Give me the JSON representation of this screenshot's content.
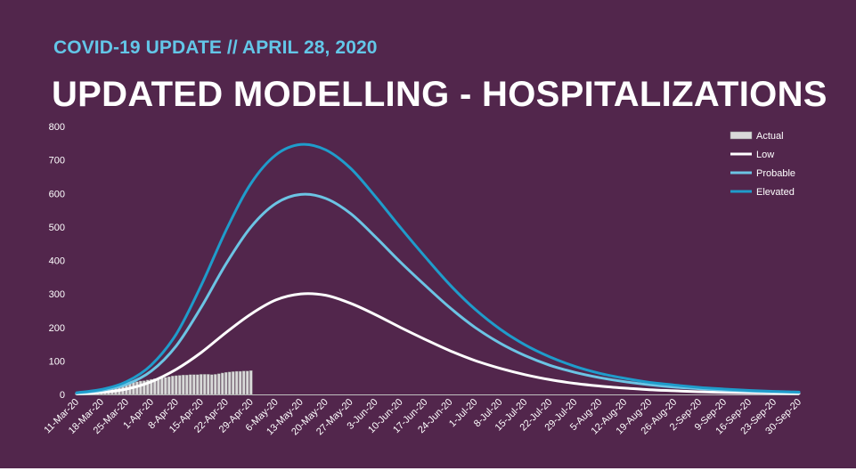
{
  "header": {
    "subtitle": "COVID-19 UPDATE // APRIL 28, 2020",
    "title": "UPDATED MODELLING - HOSPITALIZATIONS"
  },
  "colors": {
    "background": "#52264c",
    "subtitle": "#63c6e8",
    "actual": "#d9d9d9",
    "low": "#ffffff",
    "probable": "#6cc4e4",
    "elevated": "#1f9ccb"
  },
  "chart_data": {
    "type": "line",
    "title": "",
    "xlabel": "",
    "ylabel": "",
    "ylim": [
      0,
      800
    ],
    "yticks": [
      0,
      100,
      200,
      300,
      400,
      500,
      600,
      700,
      800
    ],
    "grid": false,
    "legend_position": "top-right",
    "x_tick_labels": [
      "11-Mar-20",
      "18-Mar-20",
      "25-Mar-20",
      "1-Apr-20",
      "8-Apr-20",
      "15-Apr-20",
      "22-Apr-20",
      "29-Apr-20",
      "6-May-20",
      "13-May-20",
      "20-May-20",
      "27-May-20",
      "3-Jun-20",
      "10-Jun-20",
      "17-Jun-20",
      "24-Jun-20",
      "1-Jul-20",
      "8-Jul-20",
      "15-Jul-20",
      "22-Jul-20",
      "29-Jul-20",
      "5-Aug-20",
      "12-Aug-20",
      "19-Aug-20",
      "26-Aug-20",
      "2-Sep-20",
      "9-Sep-20",
      "16-Sep-20",
      "23-Sep-20",
      "30-Sep-20"
    ],
    "legend": [
      "Actual",
      "Low",
      "Probable",
      "Elevated"
    ],
    "actual": {
      "name": "Actual",
      "start_date": "2020-03-11",
      "values": [
        1,
        2,
        3,
        4,
        6,
        8,
        10,
        13,
        16,
        18,
        20,
        22,
        24,
        27,
        30,
        33,
        36,
        38,
        40,
        41,
        43,
        45,
        47,
        49,
        50,
        51,
        53,
        55,
        56,
        57,
        58,
        58,
        59,
        59,
        59,
        60,
        60,
        60,
        59,
        60,
        62,
        64,
        66,
        67,
        68,
        69,
        69,
        70,
        70,
        71
      ]
    },
    "series": [
      {
        "name": "Low",
        "x": [
          "11-Mar-20",
          "18-Mar-20",
          "25-Mar-20",
          "1-Apr-20",
          "8-Apr-20",
          "15-Apr-20",
          "22-Apr-20",
          "29-Apr-20",
          "6-May-20",
          "13-May-20",
          "20-May-20",
          "27-May-20",
          "3-Jun-20",
          "10-Jun-20",
          "17-Jun-20",
          "24-Jun-20",
          "1-Jul-20",
          "8-Jul-20",
          "15-Jul-20",
          "22-Jul-20",
          "29-Jul-20",
          "5-Aug-20",
          "12-Aug-20",
          "19-Aug-20",
          "26-Aug-20",
          "2-Sep-20",
          "9-Sep-20",
          "16-Sep-20",
          "23-Sep-20",
          "30-Sep-20"
        ],
        "values": [
          2,
          6,
          16,
          38,
          75,
          125,
          185,
          240,
          282,
          300,
          296,
          272,
          238,
          200,
          164,
          130,
          101,
          78,
          59,
          44,
          33,
          25,
          19,
          14,
          11,
          8,
          6,
          5,
          4,
          3
        ]
      },
      {
        "name": "Probable",
        "x": [
          "11-Mar-20",
          "18-Mar-20",
          "25-Mar-20",
          "1-Apr-20",
          "8-Apr-20",
          "15-Apr-20",
          "22-Apr-20",
          "29-Apr-20",
          "6-May-20",
          "13-May-20",
          "20-May-20",
          "27-May-20",
          "3-Jun-20",
          "10-Jun-20",
          "17-Jun-20",
          "24-Jun-20",
          "1-Jul-20",
          "8-Jul-20",
          "15-Jul-20",
          "22-Jul-20",
          "29-Jul-20",
          "5-Aug-20",
          "12-Aug-20",
          "19-Aug-20",
          "26-Aug-20",
          "2-Sep-20",
          "9-Sep-20",
          "16-Sep-20",
          "23-Sep-20",
          "30-Sep-20"
        ],
        "values": [
          4,
          12,
          30,
          70,
          145,
          260,
          390,
          500,
          570,
          597,
          585,
          540,
          470,
          395,
          325,
          258,
          200,
          153,
          116,
          87,
          66,
          50,
          38,
          29,
          22,
          17,
          13,
          10,
          8,
          6
        ]
      },
      {
        "name": "Elevated",
        "x": [
          "11-Mar-20",
          "18-Mar-20",
          "25-Mar-20",
          "1-Apr-20",
          "8-Apr-20",
          "15-Apr-20",
          "22-Apr-20",
          "29-Apr-20",
          "6-May-20",
          "13-May-20",
          "20-May-20",
          "27-May-20",
          "3-Jun-20",
          "10-Jun-20",
          "17-Jun-20",
          "24-Jun-20",
          "1-Jul-20",
          "8-Jul-20",
          "15-Jul-20",
          "22-Jul-20",
          "29-Jul-20",
          "5-Aug-20",
          "12-Aug-20",
          "19-Aug-20",
          "26-Aug-20",
          "2-Sep-20",
          "9-Sep-20",
          "16-Sep-20",
          "23-Sep-20",
          "30-Sep-20"
        ],
        "values": [
          5,
          15,
          38,
          88,
          180,
          325,
          490,
          630,
          715,
          746,
          730,
          675,
          590,
          498,
          410,
          326,
          254,
          195,
          148,
          112,
          84,
          63,
          48,
          36,
          28,
          21,
          16,
          12,
          9,
          7
        ]
      }
    ]
  }
}
